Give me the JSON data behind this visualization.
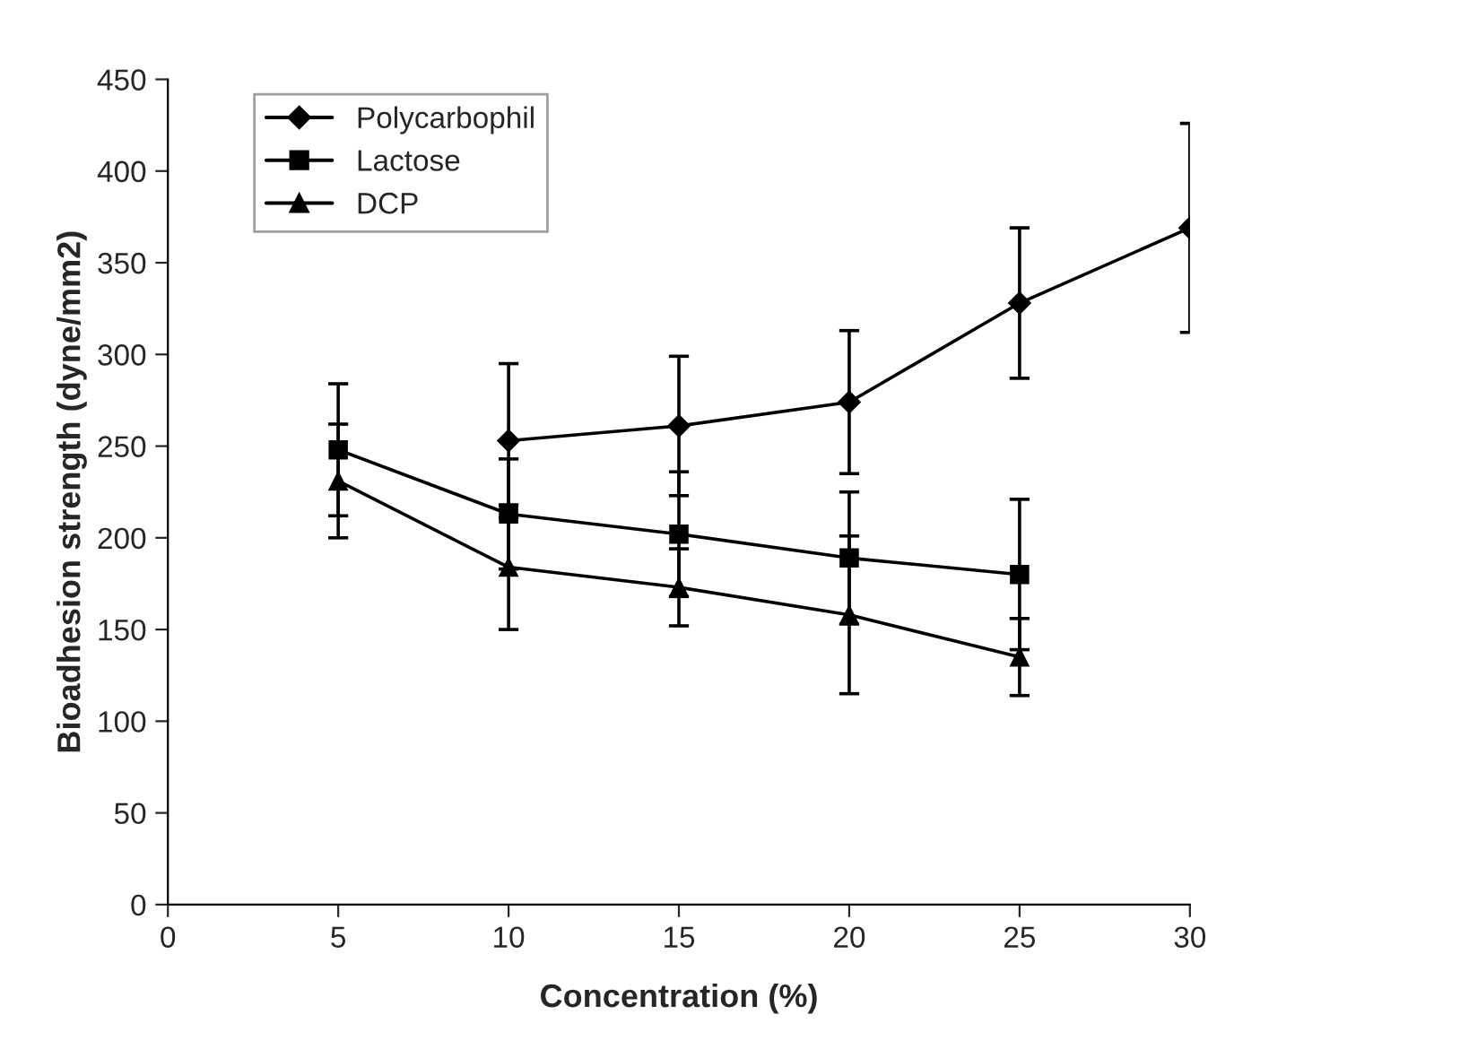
{
  "chart_data": {
    "type": "line",
    "xlabel": "Concentration (%)",
    "ylabel": "Bioadhesion strength (dyne/mm2)",
    "xlim": [
      0,
      30
    ],
    "xticks": [
      0,
      5,
      10,
      15,
      20,
      25,
      30
    ],
    "ylim": [
      0,
      450
    ],
    "yticks": [
      0,
      50,
      100,
      150,
      200,
      250,
      300,
      350,
      400,
      450
    ],
    "grid": false,
    "legend": "top left",
    "series": [
      {
        "name": "Polycarbophil",
        "color": "#000000",
        "marker": "diamond",
        "x": [
          10,
          15,
          20,
          25,
          30
        ],
        "values": [
          253,
          261,
          274,
          328,
          369
        ],
        "errors": [
          42,
          38,
          39,
          41,
          57
        ]
      },
      {
        "name": "Lactose",
        "color": "#000000",
        "marker": "square",
        "x": [
          5,
          10,
          15,
          20,
          25
        ],
        "values": [
          248,
          213,
          202,
          189,
          180
        ],
        "errors": [
          36,
          30,
          34,
          36,
          41
        ]
      },
      {
        "name": "DCP",
        "color": "#000000",
        "marker": "triangle",
        "x": [
          5,
          10,
          15,
          20,
          25
        ],
        "values": [
          231,
          184,
          173,
          158,
          135
        ],
        "errors": [
          31,
          34,
          21,
          43,
          21
        ]
      }
    ]
  }
}
